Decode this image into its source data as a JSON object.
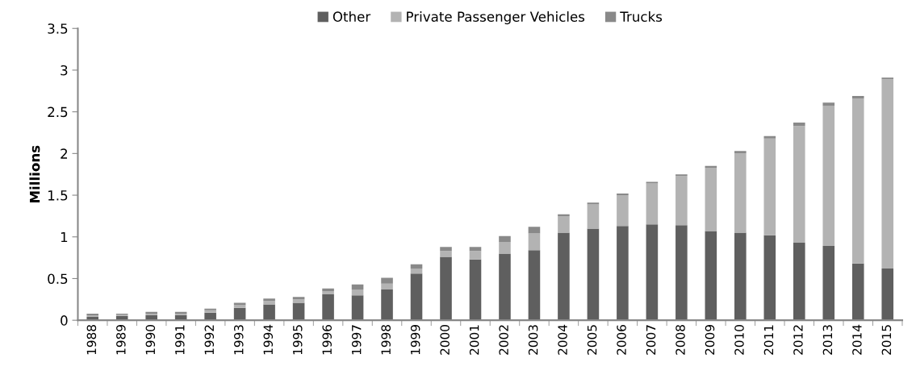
{
  "chart_data": {
    "type": "bar",
    "stacked": true,
    "ylabel": "Millions",
    "categories": [
      "1988",
      "1989",
      "1990",
      "1991",
      "1992",
      "1993",
      "1994",
      "1995",
      "1996",
      "1997",
      "1998",
      "1999",
      "2000",
      "2001",
      "2002",
      "2003",
      "2004",
      "2005",
      "2006",
      "2007",
      "2008",
      "2009",
      "2010",
      "2011",
      "2012",
      "2013",
      "2014",
      "2015"
    ],
    "series": [
      {
        "name": "Other",
        "color": "#5f5f5f",
        "values": [
          0.04,
          0.05,
          0.06,
          0.06,
          0.09,
          0.15,
          0.19,
          0.21,
          0.31,
          0.3,
          0.37,
          0.56,
          0.76,
          0.73,
          0.8,
          0.84,
          1.05,
          1.1,
          1.13,
          1.15,
          1.14,
          1.07,
          1.05,
          1.02,
          0.93,
          0.89,
          0.68,
          0.62
        ]
      },
      {
        "name": "Private Passenger Vehicles",
        "color": "#b3b3b3",
        "values": [
          0.02,
          0.02,
          0.02,
          0.02,
          0.03,
          0.03,
          0.04,
          0.04,
          0.04,
          0.07,
          0.07,
          0.06,
          0.07,
          0.1,
          0.14,
          0.2,
          0.2,
          0.29,
          0.37,
          0.49,
          0.59,
          0.76,
          0.95,
          1.16,
          1.4,
          1.68,
          1.98,
          2.27
        ]
      },
      {
        "name": "Trucks",
        "color": "#898989",
        "values": [
          0.02,
          0.01,
          0.02,
          0.02,
          0.02,
          0.03,
          0.03,
          0.03,
          0.03,
          0.06,
          0.07,
          0.05,
          0.05,
          0.05,
          0.07,
          0.08,
          0.02,
          0.02,
          0.02,
          0.02,
          0.02,
          0.02,
          0.03,
          0.03,
          0.04,
          0.04,
          0.03,
          0.02
        ]
      }
    ],
    "ylim": [
      0,
      3.5
    ],
    "yticks": [
      0,
      0.5,
      1,
      1.5,
      2,
      2.5,
      3,
      3.5
    ],
    "grid": false,
    "legend": "top"
  }
}
